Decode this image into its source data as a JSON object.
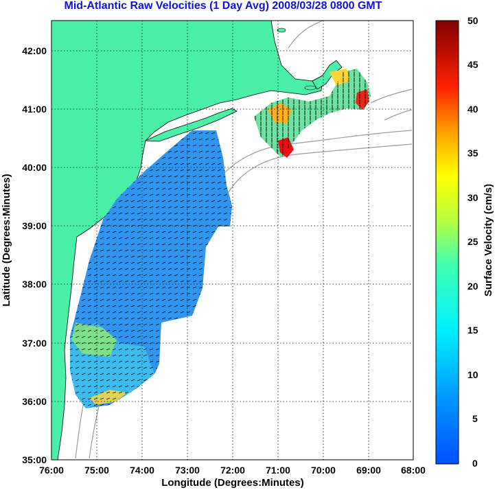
{
  "title": "Mid-Atlantic Raw Velocities (1 Day Avg) 2008/03/28 0800 GMT",
  "x_axis_label": "Longitude (Degrees:Minutes)",
  "y_axis_label": "Latitude (Degrees:Minutes)",
  "x_ticks": [
    "76:00",
    "75:00",
    "74:00",
    "73:00",
    "72:00",
    "71:00",
    "70:00",
    "69:00",
    "68:00"
  ],
  "y_ticks": [
    "42:00",
    "41:00",
    "40:00",
    "39:00",
    "38:00",
    "37:00",
    "36:00",
    "35:00"
  ],
  "colorbar": {
    "label": "Surface Velocity (cm/s)",
    "ticks": [
      "50",
      "45",
      "40",
      "35",
      "30",
      "25",
      "20",
      "15",
      "10",
      "5",
      "0"
    ],
    "min": 0,
    "max": 50,
    "colormap": "jet"
  },
  "colors": {
    "land": "#4af0a8",
    "title": "#1010e0",
    "grid": "#000000",
    "bathymetry": "#9a9a9a"
  },
  "map_extent": {
    "lon_range": [
      "76:00 W",
      "68:00 W"
    ],
    "lat_range": [
      "35:00 N",
      "42:30 N"
    ]
  }
}
